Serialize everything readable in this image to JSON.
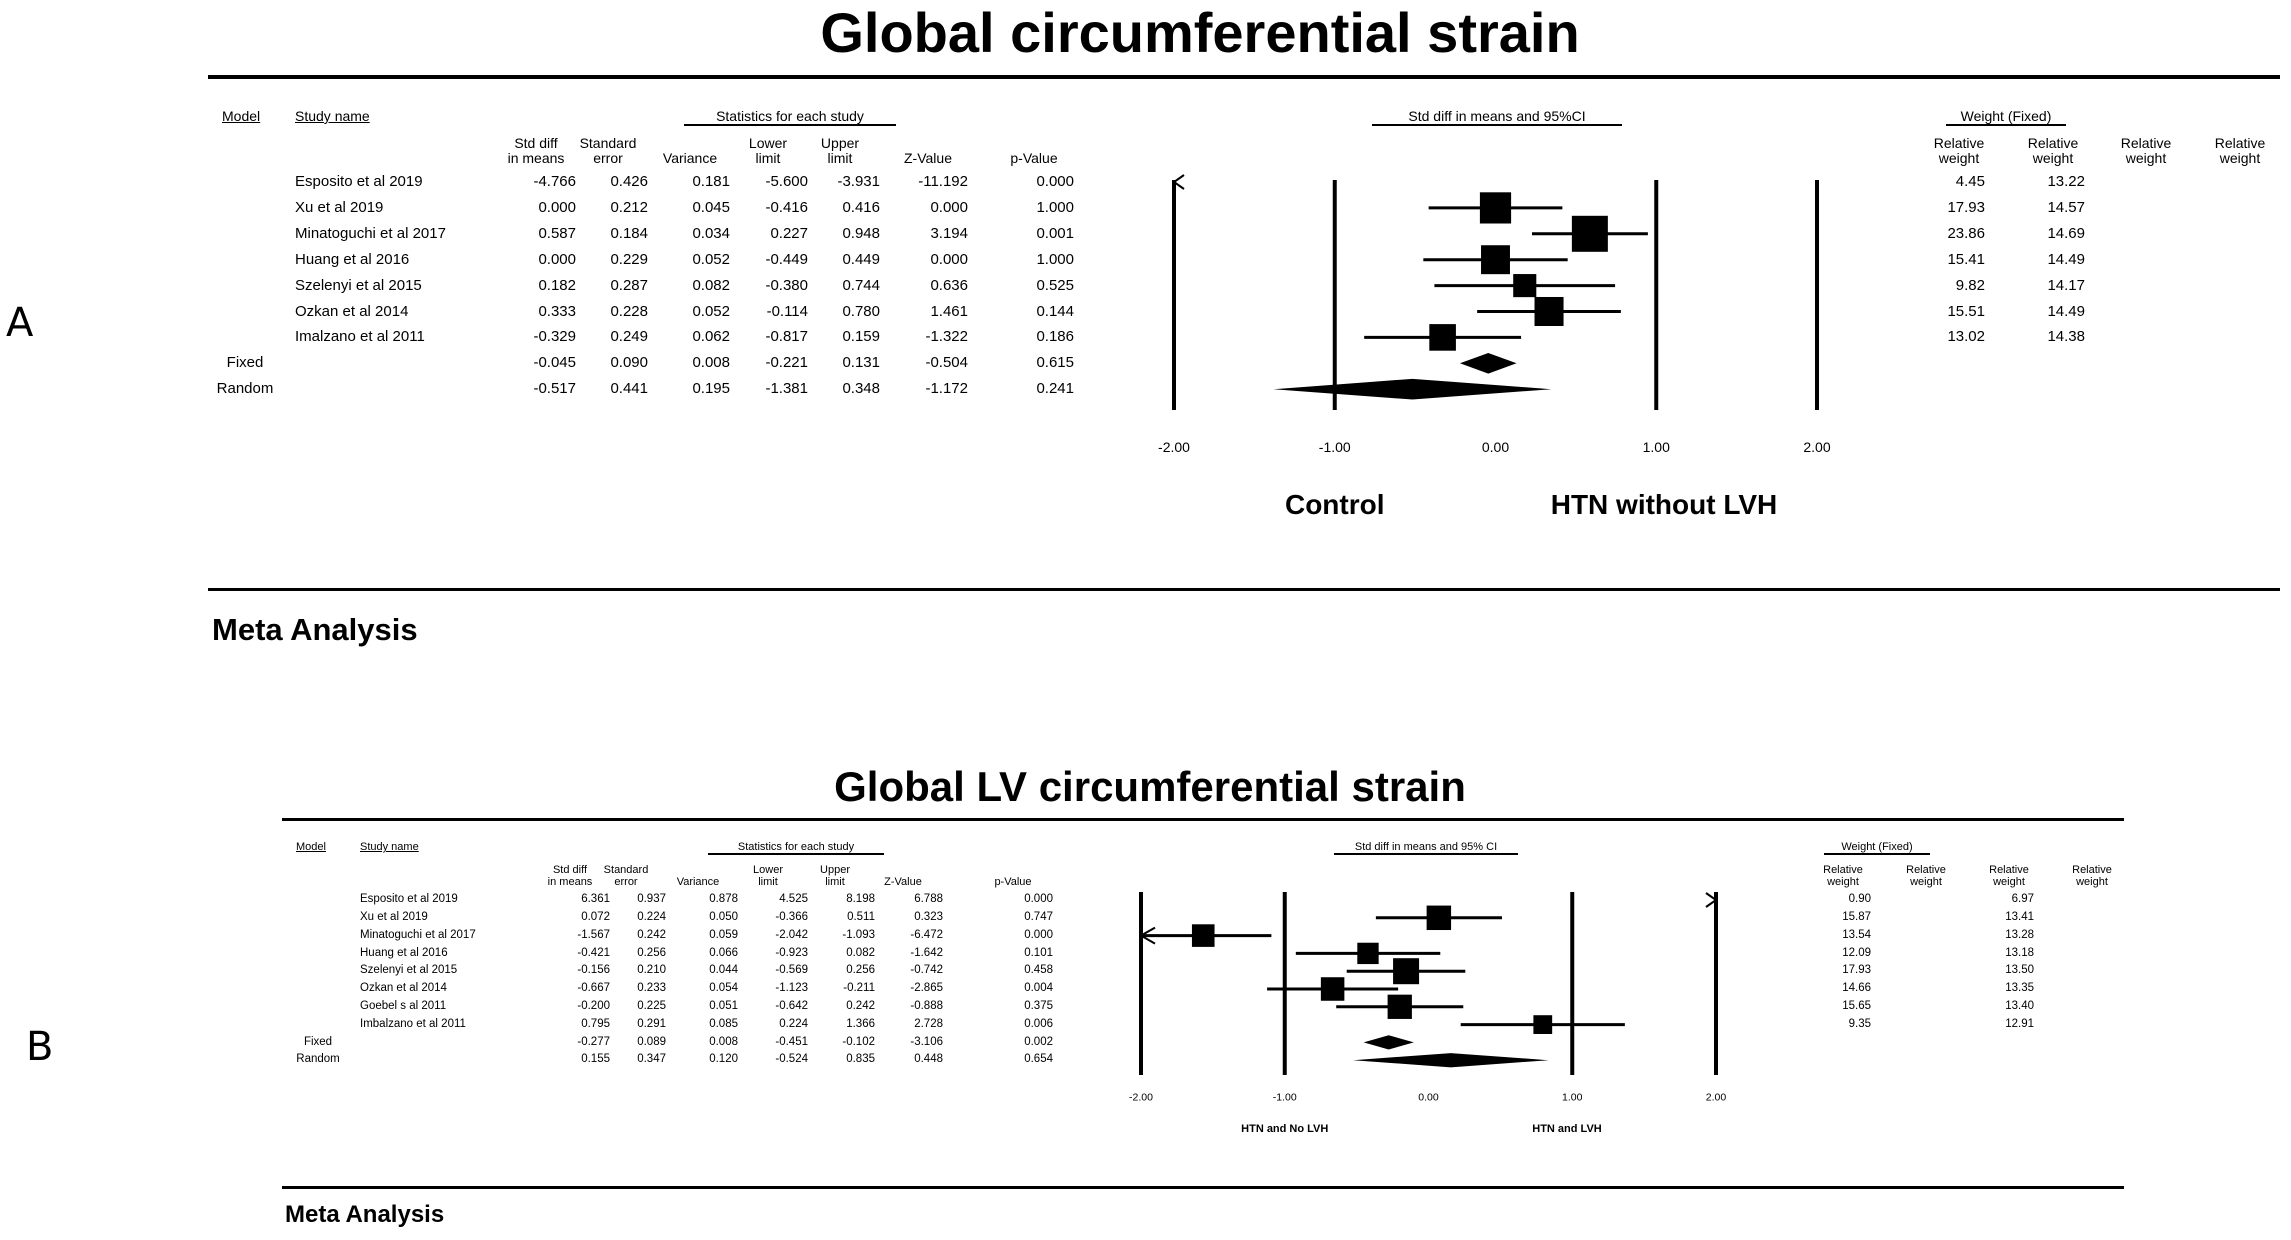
{
  "panels": [
    {
      "letter": "A",
      "title": "Global circumferential strain",
      "footer": "Meta Analysis",
      "headers": {
        "model": "Model",
        "study": "Study name",
        "stats_group": "Statistics for each study",
        "plot_group": "Std diff in means and 95%CI",
        "weight_group": "Weight (Fixed)",
        "cols": [
          [
            "Std diff",
            "in means"
          ],
          [
            "Standard",
            "error"
          ],
          [
            "Variance"
          ],
          [
            "Lower",
            "limit"
          ],
          [
            "Upper",
            "limit"
          ],
          [
            "Z-Value"
          ],
          [
            "p-Value"
          ]
        ],
        "weight_cols": [
          [
            "Relative",
            "weight"
          ],
          [
            "Relative",
            "weight"
          ],
          [
            "Relative",
            "weight"
          ],
          [
            "Relative",
            "weight"
          ]
        ]
      },
      "rows": [
        {
          "model": "",
          "study": "Esposito et al 2019",
          "vals": [
            "-4.766",
            "0.426",
            "0.181",
            "-5.600",
            "-3.931",
            "-11.192",
            "0.000"
          ],
          "w": [
            "4.45",
            "13.22"
          ]
        },
        {
          "model": "",
          "study": "Xu et al 2019",
          "vals": [
            "0.000",
            "0.212",
            "0.045",
            "-0.416",
            "0.416",
            "0.000",
            "1.000"
          ],
          "w": [
            "17.93",
            "14.57"
          ]
        },
        {
          "model": "",
          "study": "Minatoguchi et al 2017",
          "vals": [
            "0.587",
            "0.184",
            "0.034",
            "0.227",
            "0.948",
            "3.194",
            "0.001"
          ],
          "w": [
            "23.86",
            "14.69"
          ]
        },
        {
          "model": "",
          "study": "Huang et al 2016",
          "vals": [
            "0.000",
            "0.229",
            "0.052",
            "-0.449",
            "0.449",
            "0.000",
            "1.000"
          ],
          "w": [
            "15.41",
            "14.49"
          ]
        },
        {
          "model": "",
          "study": "Szelenyi et al 2015",
          "vals": [
            "0.182",
            "0.287",
            "0.082",
            "-0.380",
            "0.744",
            "0.636",
            "0.525"
          ],
          "w": [
            "9.82",
            "14.17"
          ]
        },
        {
          "model": "",
          "study": "Ozkan et al 2014",
          "vals": [
            "0.333",
            "0.228",
            "0.052",
            "-0.114",
            "0.780",
            "1.461",
            "0.144"
          ],
          "w": [
            "15.51",
            "14.49"
          ]
        },
        {
          "model": "",
          "study": "Imalzano et al 2011",
          "vals": [
            "-0.329",
            "0.249",
            "0.062",
            "-0.817",
            "0.159",
            "-1.322",
            "0.186"
          ],
          "w": [
            "13.02",
            "14.38"
          ]
        },
        {
          "model": "Fixed",
          "study": "",
          "vals": [
            "-0.045",
            "0.090",
            "0.008",
            "-0.221",
            "0.131",
            "-0.504",
            "0.615"
          ],
          "w": [
            "",
            ""
          ]
        },
        {
          "model": "Random",
          "study": "",
          "vals": [
            "-0.517",
            "0.441",
            "0.195",
            "-1.381",
            "0.348",
            "-1.172",
            "0.241"
          ],
          "w": [
            "",
            ""
          ]
        }
      ],
      "axis_labels": [
        "-2.00",
        "-1.00",
        "0.00",
        "1.00",
        "2.00"
      ],
      "favours_left": "Control",
      "favours_right": "HTN without LVH"
    },
    {
      "letter": "B",
      "title": "Global LV circumferential strain",
      "footer": "Meta Analysis",
      "headers": {
        "model": "Model",
        "study": "Study name",
        "stats_group": "Statistics for each study",
        "plot_group": "Std diff in means and 95% CI",
        "weight_group": "Weight (Fixed)",
        "cols": [
          [
            "Std diff",
            "in means"
          ],
          [
            "Standard",
            "error"
          ],
          [
            "Variance"
          ],
          [
            "Lower",
            "limit"
          ],
          [
            "Upper",
            "limit"
          ],
          [
            "Z-Value"
          ],
          [
            "p-Value"
          ]
        ],
        "weight_cols": [
          [
            "Relative",
            "weight"
          ],
          [
            "Relative",
            "weight"
          ],
          [
            "Relative",
            "weight"
          ],
          [
            "Relative",
            "weight"
          ]
        ]
      },
      "rows": [
        {
          "model": "",
          "study": "Esposito et al 2019",
          "vals": [
            "6.361",
            "0.937",
            "0.878",
            "4.525",
            "8.198",
            "6.788",
            "0.000"
          ],
          "w": [
            "0.90",
            "6.97"
          ]
        },
        {
          "model": "",
          "study": "Xu et al 2019",
          "vals": [
            "0.072",
            "0.224",
            "0.050",
            "-0.366",
            "0.511",
            "0.323",
            "0.747"
          ],
          "w": [
            "15.87",
            "13.41"
          ]
        },
        {
          "model": "",
          "study": "Minatoguchi et al 2017",
          "vals": [
            "-1.567",
            "0.242",
            "0.059",
            "-2.042",
            "-1.093",
            "-6.472",
            "0.000"
          ],
          "w": [
            "13.54",
            "13.28"
          ]
        },
        {
          "model": "",
          "study": "Huang et al 2016",
          "vals": [
            "-0.421",
            "0.256",
            "0.066",
            "-0.923",
            "0.082",
            "-1.642",
            "0.101"
          ],
          "w": [
            "12.09",
            "13.18"
          ]
        },
        {
          "model": "",
          "study": "Szelenyi et al 2015",
          "vals": [
            "-0.156",
            "0.210",
            "0.044",
            "-0.569",
            "0.256",
            "-0.742",
            "0.458"
          ],
          "w": [
            "17.93",
            "13.50"
          ]
        },
        {
          "model": "",
          "study": "Ozkan et al 2014",
          "vals": [
            "-0.667",
            "0.233",
            "0.054",
            "-1.123",
            "-0.211",
            "-2.865",
            "0.004"
          ],
          "w": [
            "14.66",
            "13.35"
          ]
        },
        {
          "model": "",
          "study": "Goebel s al 2011",
          "vals": [
            "-0.200",
            "0.225",
            "0.051",
            "-0.642",
            "0.242",
            "-0.888",
            "0.375"
          ],
          "w": [
            "15.65",
            "13.40"
          ]
        },
        {
          "model": "",
          "study": "Imbalzano et al 2011",
          "vals": [
            "0.795",
            "0.291",
            "0.085",
            "0.224",
            "1.366",
            "2.728",
            "0.006"
          ],
          "w": [
            "9.35",
            "12.91"
          ]
        },
        {
          "model": "Fixed",
          "study": "",
          "vals": [
            "-0.277",
            "0.089",
            "0.008",
            "-0.451",
            "-0.102",
            "-3.106",
            "0.002"
          ],
          "w": [
            "",
            ""
          ]
        },
        {
          "model": "Random",
          "study": "",
          "vals": [
            "0.155",
            "0.347",
            "0.120",
            "-0.524",
            "0.835",
            "0.448",
            "0.654"
          ],
          "w": [
            "",
            ""
          ]
        }
      ],
      "axis_labels": [
        "-2.00",
        "-1.00",
        "0.00",
        "1.00",
        "2.00"
      ],
      "favours_left": "HTN and No LVH",
      "favours_right": "HTN and LVH"
    }
  ],
  "chart_data": [
    {
      "type": "forest",
      "title": "Global circumferential strain",
      "xlim": [
        -2,
        2
      ],
      "studies": [
        {
          "name": "Esposito et al 2019",
          "effect": -4.766,
          "lower": -5.6,
          "upper": -3.931,
          "weight": 4.45
        },
        {
          "name": "Xu et al 2019",
          "effect": 0.0,
          "lower": -0.416,
          "upper": 0.416,
          "weight": 17.93
        },
        {
          "name": "Minatoguchi et al 2017",
          "effect": 0.587,
          "lower": 0.227,
          "upper": 0.948,
          "weight": 23.86
        },
        {
          "name": "Huang et al 2016",
          "effect": 0.0,
          "lower": -0.449,
          "upper": 0.449,
          "weight": 15.41
        },
        {
          "name": "Szelenyi et al 2015",
          "effect": 0.182,
          "lower": -0.38,
          "upper": 0.744,
          "weight": 9.82
        },
        {
          "name": "Ozkan et al 2014",
          "effect": 0.333,
          "lower": -0.114,
          "upper": 0.78,
          "weight": 15.51
        },
        {
          "name": "Imalzano et al 2011",
          "effect": -0.329,
          "lower": -0.817,
          "upper": 0.159,
          "weight": 13.02
        }
      ],
      "summary": [
        {
          "name": "Fixed",
          "effect": -0.045,
          "lower": -0.221,
          "upper": 0.131
        },
        {
          "name": "Random",
          "effect": -0.517,
          "lower": -1.381,
          "upper": 0.348
        }
      ]
    },
    {
      "type": "forest",
      "title": "Global LV circumferential strain",
      "xlim": [
        -2,
        2
      ],
      "studies": [
        {
          "name": "Esposito et al 2019",
          "effect": 6.361,
          "lower": 4.525,
          "upper": 8.198,
          "weight": 0.9
        },
        {
          "name": "Xu et al 2019",
          "effect": 0.072,
          "lower": -0.366,
          "upper": 0.511,
          "weight": 15.87
        },
        {
          "name": "Minatoguchi et al 2017",
          "effect": -1.567,
          "lower": -2.042,
          "upper": -1.093,
          "weight": 13.54
        },
        {
          "name": "Huang et al 2016",
          "effect": -0.421,
          "lower": -0.923,
          "upper": 0.082,
          "weight": 12.09
        },
        {
          "name": "Szelenyi et al 2015",
          "effect": -0.156,
          "lower": -0.569,
          "upper": 0.256,
          "weight": 17.93
        },
        {
          "name": "Ozkan et al 2014",
          "effect": -0.667,
          "lower": -1.123,
          "upper": -0.211,
          "weight": 14.66
        },
        {
          "name": "Goebel s al 2011",
          "effect": -0.2,
          "lower": -0.642,
          "upper": 0.242,
          "weight": 15.65
        },
        {
          "name": "Imbalzano et al 2011",
          "effect": 0.795,
          "lower": 0.224,
          "upper": 1.366,
          "weight": 9.35
        }
      ],
      "summary": [
        {
          "name": "Fixed",
          "effect": -0.277,
          "lower": -0.451,
          "upper": -0.102
        },
        {
          "name": "Random",
          "effect": 0.155,
          "lower": -0.524,
          "upper": 0.835
        }
      ]
    }
  ]
}
